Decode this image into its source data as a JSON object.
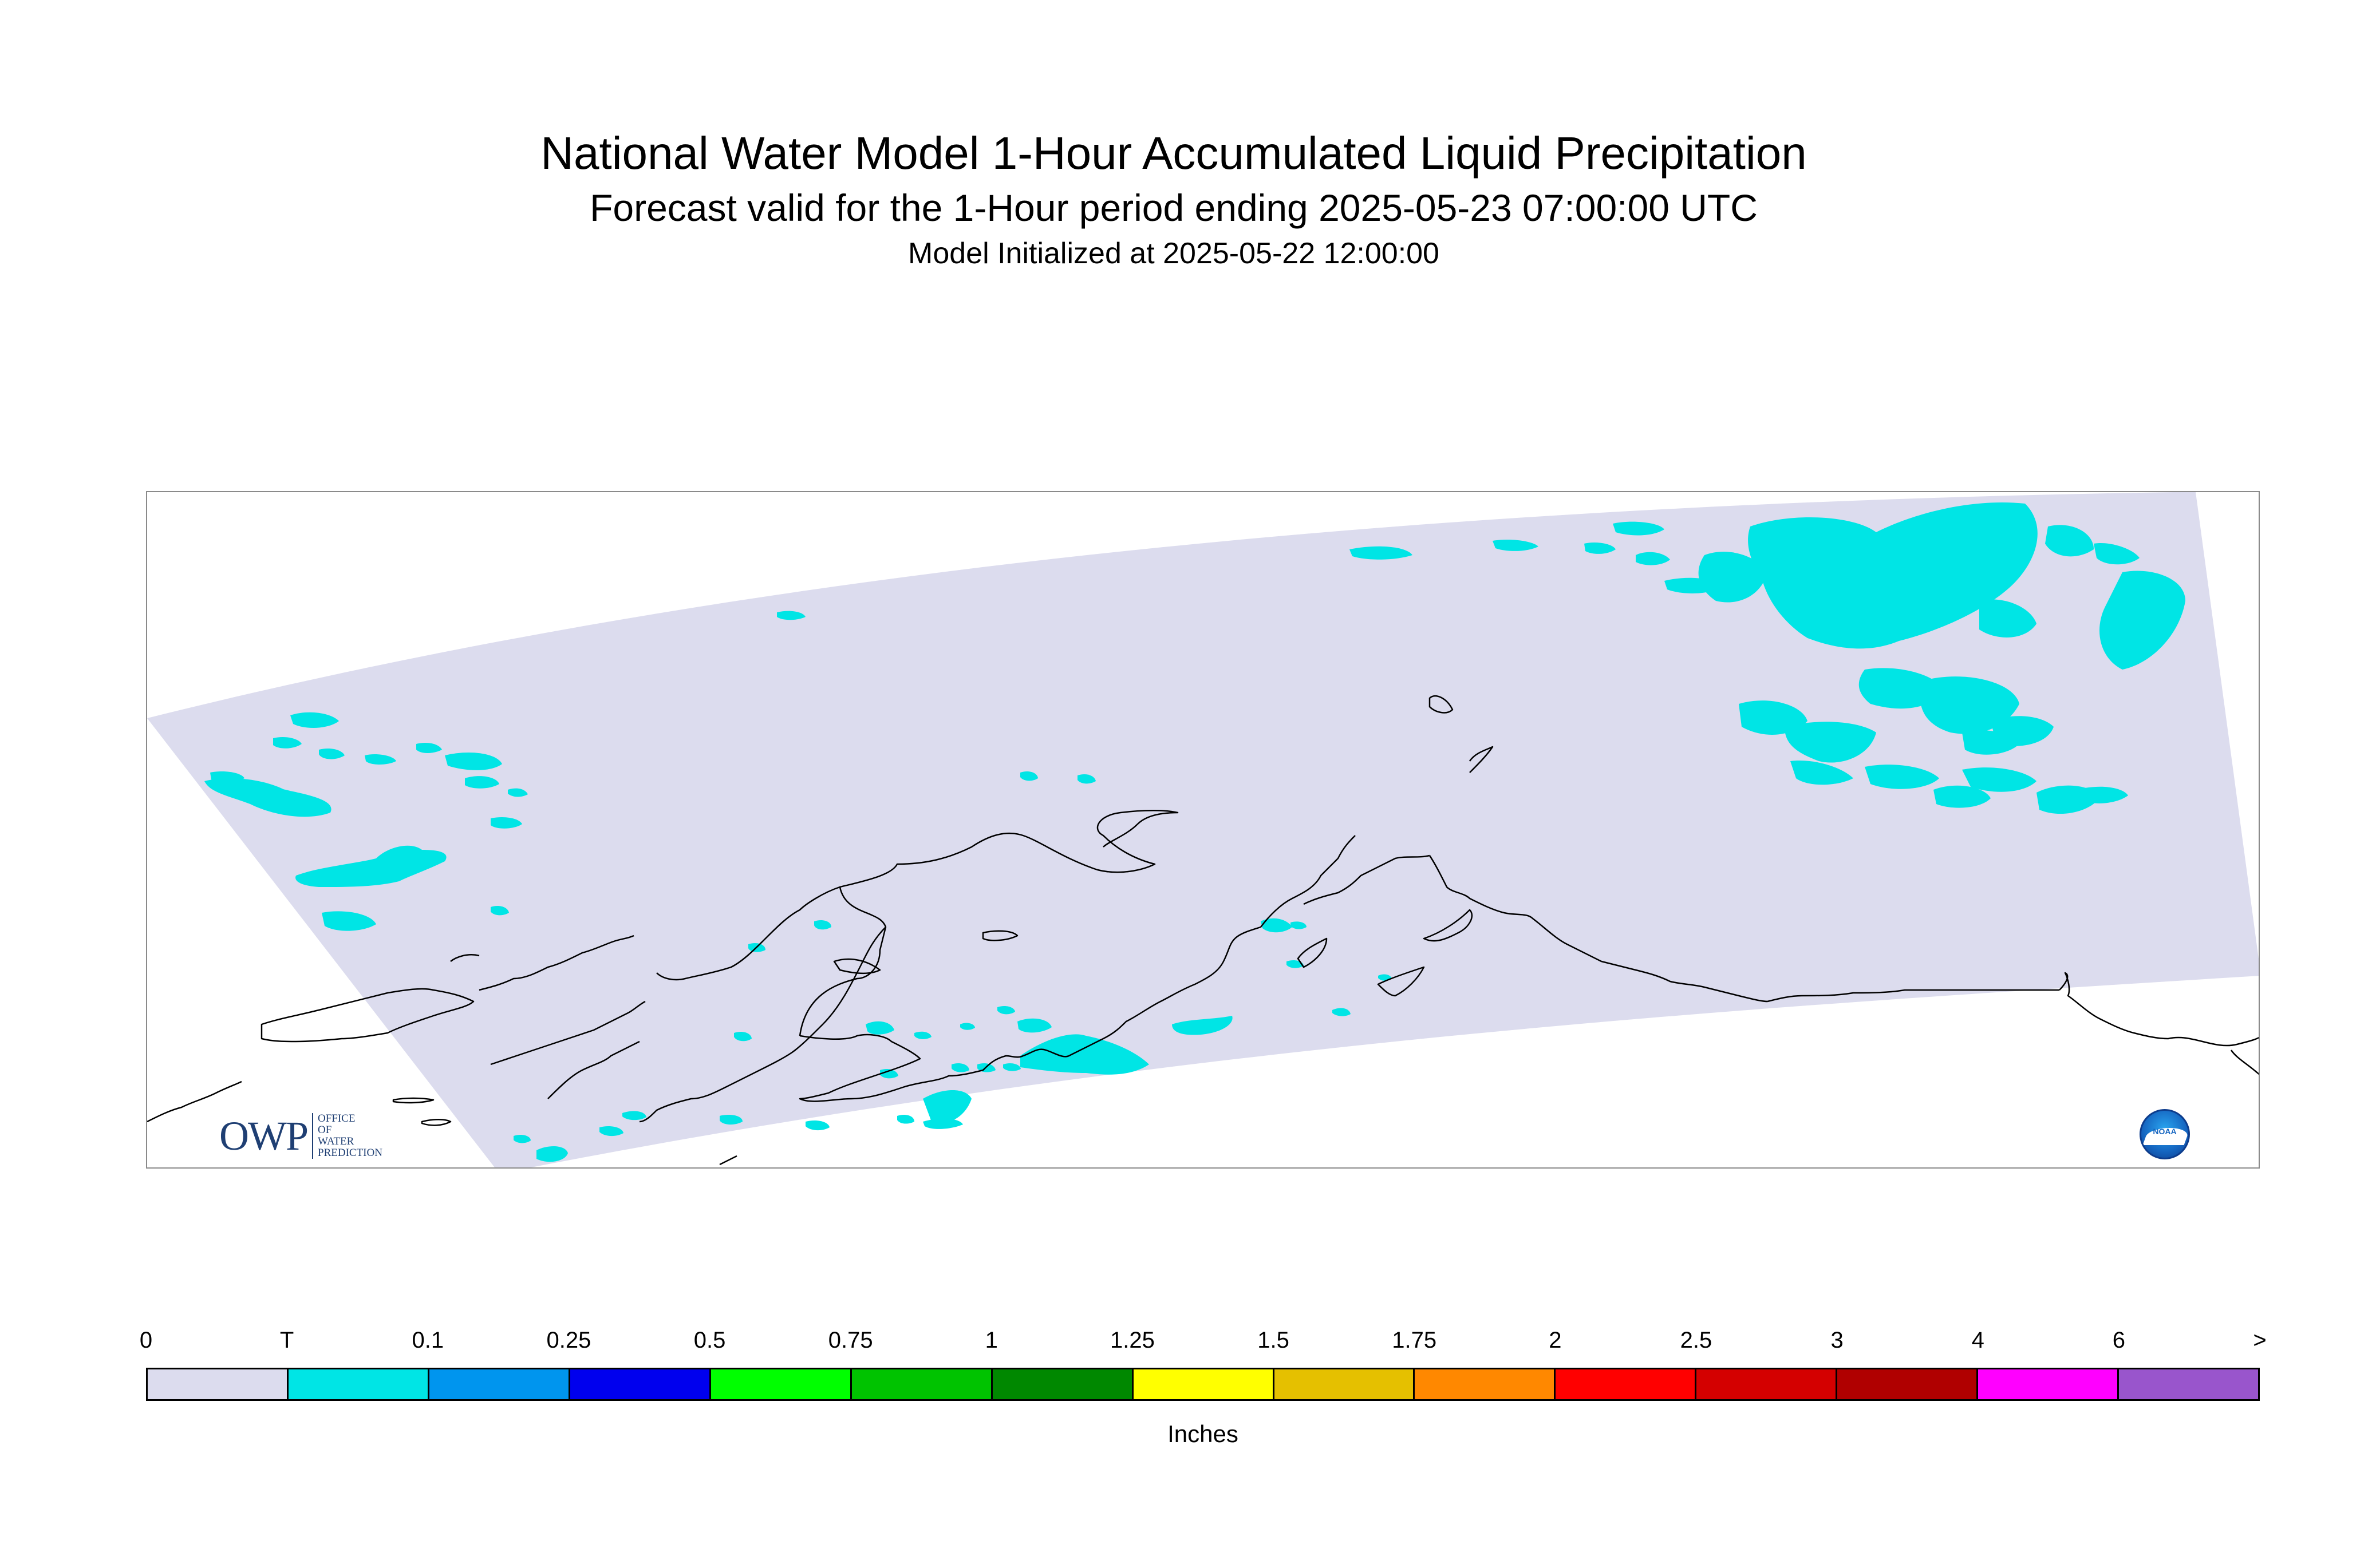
{
  "header": {
    "title": "National Water Model 1-Hour Accumulated Liquid Precipitation",
    "subtitle": "Forecast valid for the 1-Hour period ending 2025-05-23 07:00:00 UTC",
    "init_line": "Model Initialized at 2025-05-22 12:00:00"
  },
  "logos": {
    "owp_letters": "OWP",
    "owp_subtext": "OFFICE OF WATER PREDICTION",
    "noaa_text": "NOAA"
  },
  "map": {
    "domain_fill": "#dcdcee",
    "precip_fill": "#00e5e5",
    "coastline_color": "#000000"
  },
  "legend": {
    "units": "Inches",
    "tick_labels": [
      "0",
      "T",
      "0.1",
      "0.25",
      "0.5",
      "0.75",
      "1",
      "1.25",
      "1.5",
      "1.75",
      "2",
      "2.5",
      "3",
      "4",
      "6",
      ">"
    ],
    "colors": [
      "#dcdcee",
      "#00e5e5",
      "#0095ee",
      "#0000ee",
      "#00ff00",
      "#00c300",
      "#008800",
      "#ffff00",
      "#e5c000",
      "#ff8800",
      "#ff0000",
      "#d40000",
      "#b00000",
      "#ff00ff",
      "#9955cc"
    ]
  }
}
